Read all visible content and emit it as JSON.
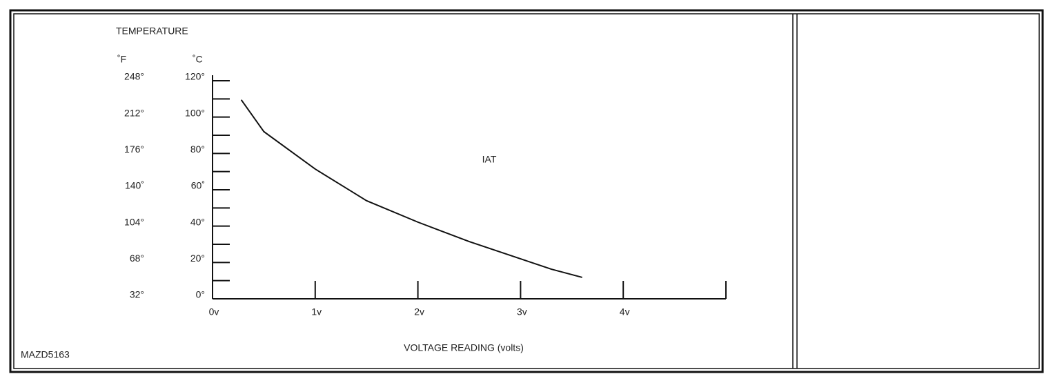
{
  "chart_data": {
    "type": "line",
    "title": "TEMPERATURE",
    "y_unit_label": "˚C",
    "y2_unit_label": "˚F",
    "x_label": "VOLTAGE READING (volts)",
    "figure_id": "MAZD5163",
    "xlim": [
      0,
      5
    ],
    "xticks": [
      {
        "value": 0,
        "label": "0v"
      },
      {
        "value": 1,
        "label": "1v"
      },
      {
        "value": 2,
        "label": "2v"
      },
      {
        "value": 3,
        "label": "3v"
      },
      {
        "value": 4,
        "label": "4v"
      }
    ],
    "ylim": [
      0,
      120
    ],
    "yticks": [
      {
        "value": 120,
        "label": "120°"
      },
      {
        "value": 100,
        "label": "100°"
      },
      {
        "value": 80,
        "label": "80°"
      },
      {
        "value": 60,
        "label": "60˚"
      },
      {
        "value": 40,
        "label": "40°"
      },
      {
        "value": 20,
        "label": "20°"
      },
      {
        "value": 0,
        "label": "0°"
      }
    ],
    "minor_yticks": [
      110,
      90,
      70,
      50,
      30,
      10
    ],
    "y2lim": [
      32,
      248
    ],
    "y2ticks": [
      {
        "value": 248,
        "label": "248°"
      },
      {
        "value": 212,
        "label": "212°"
      },
      {
        "value": 176,
        "label": "176°"
      },
      {
        "value": 140,
        "label": "140˚"
      },
      {
        "value": 104,
        "label": "104°"
      },
      {
        "value": 68,
        "label": "68°"
      },
      {
        "value": 32,
        "label": "32°"
      }
    ],
    "x": [
      0.28,
      0.5,
      1,
      1.5,
      2,
      2.5,
      3,
      3.3,
      3.6
    ],
    "series": [
      {
        "name": "IAT",
        "color": "#111111",
        "values": [
          109.5,
          92,
          71.4,
          54,
          42.2,
          31.5,
          22,
          16.3,
          11.8
        ]
      }
    ]
  }
}
